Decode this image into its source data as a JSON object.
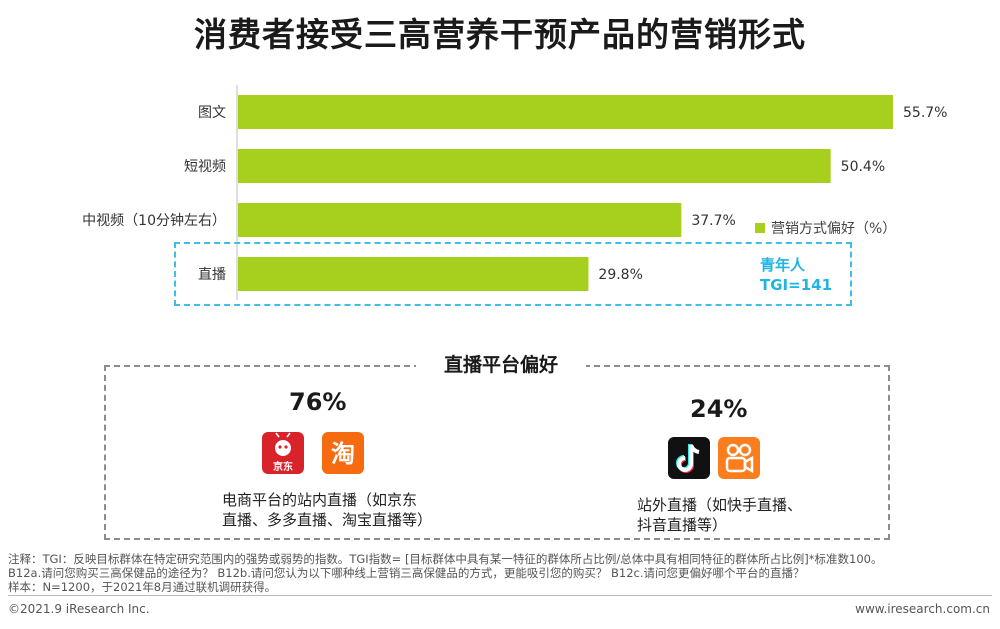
{
  "title": "消费者接受三高营养干预产品的营销形式",
  "chart_data": {
    "type": "bar",
    "orientation": "horizontal",
    "categories": [
      "图文",
      "短视频",
      "中视频（10分钟左右）",
      "直播"
    ],
    "series": [
      {
        "name": "营销方式偏好（%）",
        "values": [
          55.7,
          50.4,
          37.7,
          29.8
        ]
      }
    ],
    "value_labels": [
      "55.7%",
      "50.4%",
      "37.7%",
      "29.8%"
    ],
    "xlim": [
      0,
      55.7
    ],
    "bar_color": "#a7cf1e",
    "legend_position": "right"
  },
  "legend": {
    "label": "营销方式偏好（%）"
  },
  "highlight": {
    "line1": "青年人",
    "line2": "TGI=141",
    "color": "#20b4e4"
  },
  "platform": {
    "title": "直播平台偏好",
    "left": {
      "pct": "76%",
      "logos": [
        "jd-logo",
        "taobao-logo"
      ],
      "logo_text": [
        "京东",
        "淘"
      ],
      "line1": "电商平台的站内直播（如京东",
      "line2": "直播、多多直播、淘宝直播等）"
    },
    "right": {
      "pct": "24%",
      "logos": [
        "douyin-logo",
        "kuaishou-logo"
      ],
      "line1": "站外直播（如快手直播、",
      "line2": "抖音直播等）"
    }
  },
  "footnotes": [
    "注释：TGI：反映目标群体在特定研究范围内的强势或弱势的指数。TGI指数= [目标群体中具有某一特征的群体所占比例/总体中具有相同特征的群体所占比例]*标准数100。",
    "B12a.请问您购买三高保健品的途径为？  B12b.请问您认为以下哪种线上营销三高保健品的方式，更能吸引您的购买？  B12c.请问您更偏好哪个平台的直播？",
    "样本：N=1200，于2021年8月通过联机调研获得。"
  ],
  "copyright": "©2021.9 iResearch Inc.",
  "website": "www.iresearch.com.cn"
}
